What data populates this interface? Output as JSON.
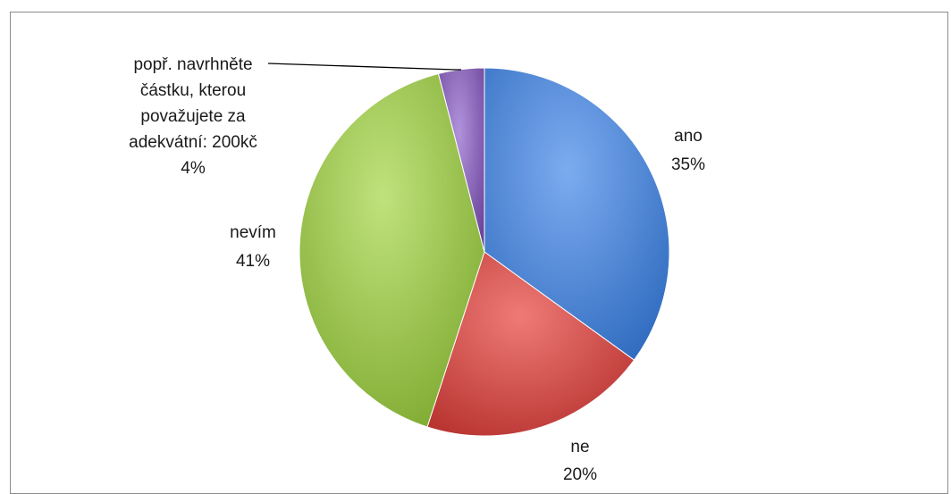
{
  "chart_data": {
    "type": "pie",
    "slices": [
      {
        "label": "ano",
        "value": 35,
        "pct_label": "35%",
        "color": "#4a86d6"
      },
      {
        "label": "ne",
        "value": 20,
        "pct_label": "20%",
        "color": "#d9504c"
      },
      {
        "label": "nevím",
        "value": 41,
        "pct_label": "41%",
        "color": "#9bc94a"
      },
      {
        "label": "popř. navrhněte částku, kterou považujete za adekvátní: 200kč",
        "label_lines": [
          "popř. navrhněte",
          "částku, kterou",
          "považujete za",
          "adekvátní: 200kč"
        ],
        "value": 4,
        "pct_label": "4%",
        "color": "#8a62b8"
      }
    ]
  }
}
